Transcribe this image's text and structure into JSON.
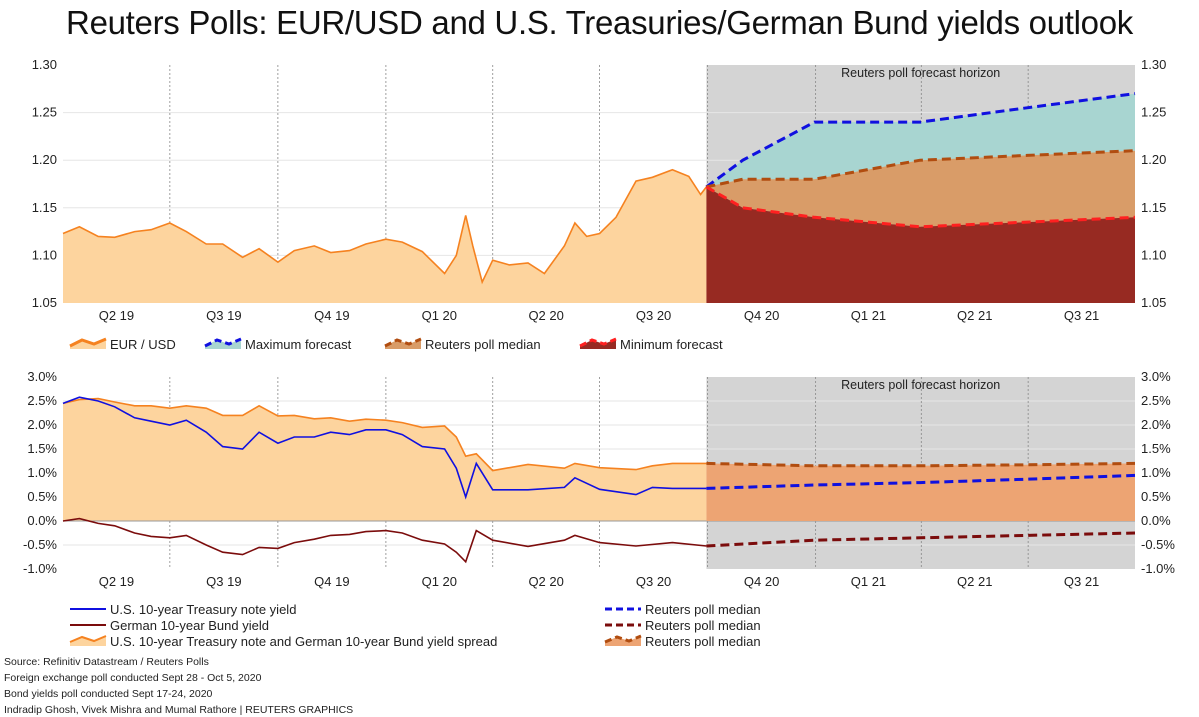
{
  "title": "Reuters Polls: EUR/USD and U.S. Treasuries/German Bund yields outlook",
  "colors": {
    "history_fill": "#fdd49e",
    "history_line": "#f58220",
    "blue": "#1010e0",
    "median_line": "#b14d10",
    "min_line": "#ff2020",
    "band_upper": "#a8d5d1",
    "band_mid": "#d99c68",
    "band_low": "#972a22",
    "forecast_bg": "#d4d4d4",
    "spread_forecast": "#eda473",
    "bund": "#7b0c0c"
  },
  "footer": {
    "source": "Source: Refinitiv Datastream / Reuters Polls",
    "fx_poll": "Foreign exchange poll conducted Sept 28 - Oct 5, 2020",
    "bond_poll": "Bond yields poll conducted Sept 17-24, 2020",
    "credit": "Indradip Ghosh, Vivek Mishra and Mumal Rathore | REUTERS GRAPHICS"
  },
  "chart_data": [
    {
      "type": "area",
      "forecast_label": "Reuters poll forecast horizon",
      "quarters": [
        "Q2 19",
        "Q3 19",
        "Q4 19",
        "Q1 20",
        "Q2 20",
        "Q3 20",
        "Q4 20",
        "Q1 21",
        "Q2 21",
        "Q3 21"
      ],
      "ylim": [
        1.05,
        1.3
      ],
      "yticks": [
        "1.05",
        "1.10",
        "1.15",
        "1.20",
        "1.25",
        "1.30"
      ],
      "legend": [
        "EUR / USD",
        "Maximum forecast",
        "Reuters poll median",
        "Minimum forecast"
      ],
      "history": {
        "name": "EUR / USD",
        "points": [
          [
            "2019-04-01",
            1.123
          ],
          [
            "2019-04-15",
            1.13
          ],
          [
            "2019-05-01",
            1.12
          ],
          [
            "2019-05-15",
            1.119
          ],
          [
            "2019-06-01",
            1.125
          ],
          [
            "2019-06-15",
            1.127
          ],
          [
            "2019-07-01",
            1.134
          ],
          [
            "2019-07-15",
            1.125
          ],
          [
            "2019-08-01",
            1.112
          ],
          [
            "2019-08-15",
            1.112
          ],
          [
            "2019-09-01",
            1.098
          ],
          [
            "2019-09-15",
            1.107
          ],
          [
            "2019-10-01",
            1.093
          ],
          [
            "2019-10-15",
            1.105
          ],
          [
            "2019-11-01",
            1.11
          ],
          [
            "2019-11-15",
            1.103
          ],
          [
            "2019-12-01",
            1.105
          ],
          [
            "2019-12-15",
            1.112
          ],
          [
            "2020-01-01",
            1.117
          ],
          [
            "2020-01-15",
            1.114
          ],
          [
            "2020-02-01",
            1.104
          ],
          [
            "2020-02-20",
            1.081
          ],
          [
            "2020-03-01",
            1.1
          ],
          [
            "2020-03-09",
            1.142
          ],
          [
            "2020-03-15",
            1.11
          ],
          [
            "2020-03-23",
            1.072
          ],
          [
            "2020-04-01",
            1.095
          ],
          [
            "2020-04-15",
            1.09
          ],
          [
            "2020-05-01",
            1.092
          ],
          [
            "2020-05-15",
            1.081
          ],
          [
            "2020-06-01",
            1.11
          ],
          [
            "2020-06-10",
            1.134
          ],
          [
            "2020-06-20",
            1.12
          ],
          [
            "2020-07-01",
            1.123
          ],
          [
            "2020-07-15",
            1.14
          ],
          [
            "2020-08-01",
            1.178
          ],
          [
            "2020-08-15",
            1.182
          ],
          [
            "2020-09-01",
            1.19
          ],
          [
            "2020-09-15",
            1.183
          ],
          [
            "2020-09-25",
            1.164
          ],
          [
            "2020-09-30",
            1.172
          ]
        ]
      },
      "forecast_dates": [
        "2020-09-30",
        "2020-10-31",
        "2020-12-31",
        "2021-03-31",
        "2021-06-30",
        "2021-09-30"
      ],
      "series": [
        {
          "name": "Maximum forecast",
          "values": [
            1.172,
            1.2,
            1.24,
            1.24,
            1.255,
            1.27
          ]
        },
        {
          "name": "Reuters poll median",
          "values": [
            1.172,
            1.18,
            1.18,
            1.2,
            1.205,
            1.21
          ]
        },
        {
          "name": "Minimum forecast",
          "values": [
            1.172,
            1.15,
            1.14,
            1.13,
            1.135,
            1.14
          ]
        }
      ]
    },
    {
      "type": "line",
      "forecast_label": "Reuters poll forecast horizon",
      "quarters": [
        "Q2 19",
        "Q3 19",
        "Q4 19",
        "Q1 20",
        "Q2 20",
        "Q3 20",
        "Q4 20",
        "Q1 21",
        "Q2 21",
        "Q3 21"
      ],
      "ylim": [
        -1.0,
        3.0
      ],
      "yticks": [
        "-1.0%",
        "-0.5%",
        "0.0%",
        "0.5%",
        "1.0%",
        "1.5%",
        "2.0%",
        "2.5%",
        "3.0%"
      ],
      "legend_left": [
        "U.S. 10-year Treasury note yield",
        "German 10-year Bund yield",
        "U.S. 10-year Treasury note and German 10-year Bund yield spread"
      ],
      "legend_right": [
        "Reuters poll median",
        "Reuters poll median",
        "Reuters poll median"
      ],
      "us_yield": {
        "name": "U.S. 10-year Treasury note yield",
        "points": [
          [
            "2019-04-01",
            2.45
          ],
          [
            "2019-04-15",
            2.58
          ],
          [
            "2019-05-01",
            2.5
          ],
          [
            "2019-05-15",
            2.38
          ],
          [
            "2019-06-01",
            2.15
          ],
          [
            "2019-06-15",
            2.08
          ],
          [
            "2019-07-01",
            2.0
          ],
          [
            "2019-07-15",
            2.1
          ],
          [
            "2019-08-01",
            1.85
          ],
          [
            "2019-08-15",
            1.55
          ],
          [
            "2019-09-01",
            1.5
          ],
          [
            "2019-09-15",
            1.85
          ],
          [
            "2019-10-01",
            1.62
          ],
          [
            "2019-10-15",
            1.75
          ],
          [
            "2019-11-01",
            1.75
          ],
          [
            "2019-11-15",
            1.85
          ],
          [
            "2019-12-01",
            1.8
          ],
          [
            "2019-12-15",
            1.9
          ],
          [
            "2020-01-01",
            1.9
          ],
          [
            "2020-01-15",
            1.8
          ],
          [
            "2020-02-01",
            1.55
          ],
          [
            "2020-02-20",
            1.5
          ],
          [
            "2020-03-01",
            1.1
          ],
          [
            "2020-03-09",
            0.5
          ],
          [
            "2020-03-18",
            1.2
          ],
          [
            "2020-04-01",
            0.65
          ],
          [
            "2020-05-01",
            0.65
          ],
          [
            "2020-06-01",
            0.7
          ],
          [
            "2020-06-10",
            0.9
          ],
          [
            "2020-07-01",
            0.66
          ],
          [
            "2020-08-01",
            0.55
          ],
          [
            "2020-08-15",
            0.7
          ],
          [
            "2020-09-01",
            0.68
          ],
          [
            "2020-09-30",
            0.68
          ]
        ]
      },
      "bund_yield": {
        "name": "German 10-year Bund yield",
        "points": [
          [
            "2019-04-01",
            0.0
          ],
          [
            "2019-04-15",
            0.05
          ],
          [
            "2019-05-01",
            -0.05
          ],
          [
            "2019-05-15",
            -0.1
          ],
          [
            "2019-06-01",
            -0.25
          ],
          [
            "2019-06-15",
            -0.32
          ],
          [
            "2019-07-01",
            -0.35
          ],
          [
            "2019-07-15",
            -0.3
          ],
          [
            "2019-08-01",
            -0.5
          ],
          [
            "2019-08-15",
            -0.65
          ],
          [
            "2019-09-01",
            -0.7
          ],
          [
            "2019-09-15",
            -0.55
          ],
          [
            "2019-10-01",
            -0.57
          ],
          [
            "2019-10-15",
            -0.45
          ],
          [
            "2019-11-01",
            -0.38
          ],
          [
            "2019-11-15",
            -0.3
          ],
          [
            "2019-12-01",
            -0.28
          ],
          [
            "2019-12-15",
            -0.22
          ],
          [
            "2020-01-01",
            -0.2
          ],
          [
            "2020-01-15",
            -0.25
          ],
          [
            "2020-02-01",
            -0.4
          ],
          [
            "2020-02-20",
            -0.48
          ],
          [
            "2020-03-01",
            -0.65
          ],
          [
            "2020-03-09",
            -0.85
          ],
          [
            "2020-03-18",
            -0.2
          ],
          [
            "2020-04-01",
            -0.4
          ],
          [
            "2020-05-01",
            -0.53
          ],
          [
            "2020-06-01",
            -0.4
          ],
          [
            "2020-06-10",
            -0.3
          ],
          [
            "2020-07-01",
            -0.45
          ],
          [
            "2020-08-01",
            -0.52
          ],
          [
            "2020-09-01",
            -0.45
          ],
          [
            "2020-09-30",
            -0.52
          ]
        ]
      },
      "forecast_dates": [
        "2020-09-30",
        "2020-12-31",
        "2021-03-31",
        "2021-06-30",
        "2021-09-30"
      ],
      "series": [
        {
          "name": "U.S. 10-year Treasury note yield median",
          "values": [
            0.68,
            0.75,
            0.8,
            0.87,
            0.95
          ]
        },
        {
          "name": "German 10-year Bund yield median",
          "values": [
            -0.52,
            -0.4,
            -0.35,
            -0.3,
            -0.25
          ]
        },
        {
          "name": "Yield spread median",
          "values": [
            1.2,
            1.15,
            1.15,
            1.17,
            1.2
          ]
        }
      ]
    }
  ]
}
